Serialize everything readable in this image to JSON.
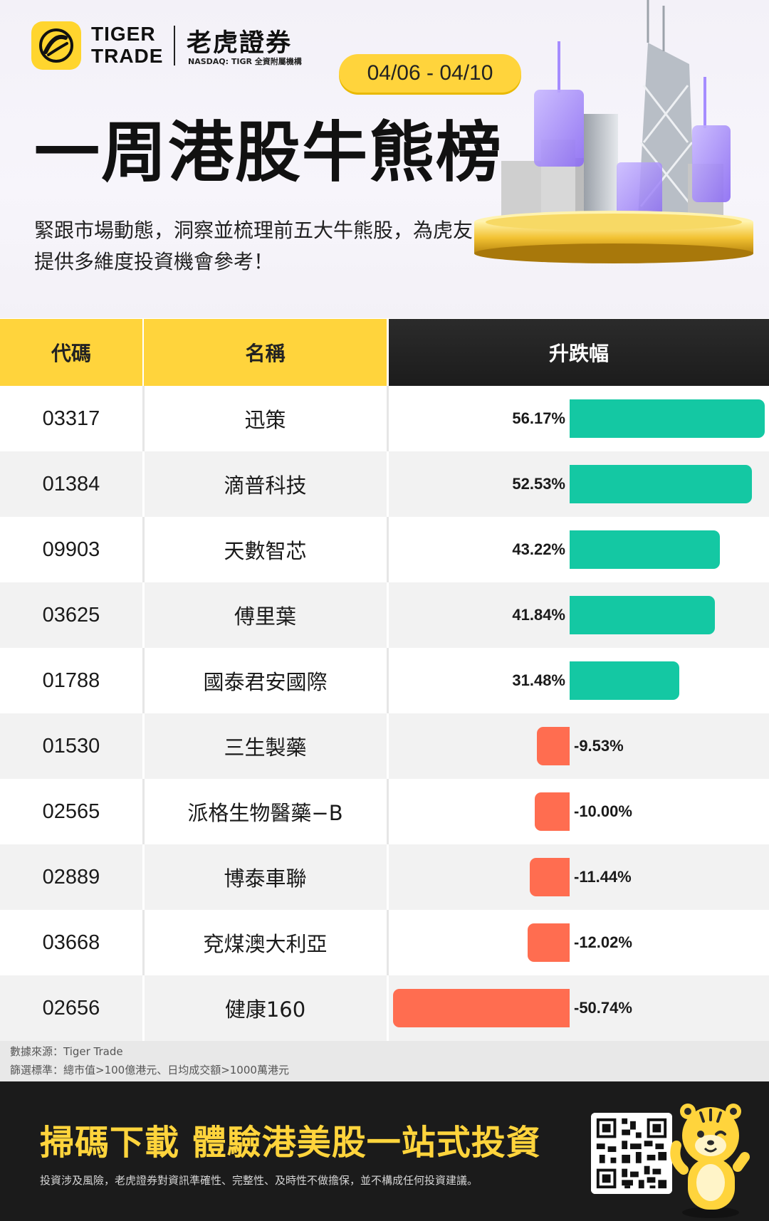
{
  "brand": {
    "en_line1": "TIGER",
    "en_line2": "TRADE",
    "cn": "老虎證券",
    "sub": "NASDAQ: TIGR 全資附屬機構"
  },
  "date_range": "04/06 - 04/10",
  "title": "一周港股牛熊榜",
  "subtitle": "緊跟市場動態，洞察並梳理前五大牛熊股，為虎友提供多維度投資機會參考！",
  "table": {
    "headers": [
      "代碼",
      "名稱",
      "升跌幅"
    ]
  },
  "chart_data": {
    "type": "bar",
    "orientation": "horizontal",
    "categories": [
      "03317",
      "01384",
      "09903",
      "03625",
      "01788",
      "01530",
      "02565",
      "02889",
      "03668",
      "02656"
    ],
    "names": [
      "迅策",
      "滴普科技",
      "天數智芯",
      "傅里葉",
      "國泰君安國際",
      "三生製藥",
      "派格生物醫藥−B",
      "博泰車聯",
      "兗煤澳大利亞",
      "健康160"
    ],
    "values": [
      56.17,
      52.53,
      43.22,
      41.84,
      31.48,
      -9.53,
      -10.0,
      -11.44,
      -12.02,
      -50.74
    ],
    "labels": [
      "56.17%",
      "52.53%",
      "43.22%",
      "41.84%",
      "31.48%",
      "-9.53%",
      "-10.00%",
      "-11.44%",
      "-12.02%",
      "-50.74%"
    ],
    "colors": {
      "positive": "#14c8a3",
      "negative": "#ff6d50"
    }
  },
  "notes": {
    "source": "數據來源：Tiger Trade",
    "criteria": "篩選標準：總市值>100億港元、日均成交額>1000萬港元"
  },
  "footer": {
    "cta": "掃碼下載  體驗港美股一站式投資",
    "disclaimer": "投資涉及風險，老虎證券對資訊準確性、完整性、及時性不做擔保，並不構成任何投資建議。"
  },
  "icons": [
    "tiger-logo-icon",
    "qr-code-icon",
    "tiger-mascot-icon",
    "city-skyline-icon"
  ]
}
